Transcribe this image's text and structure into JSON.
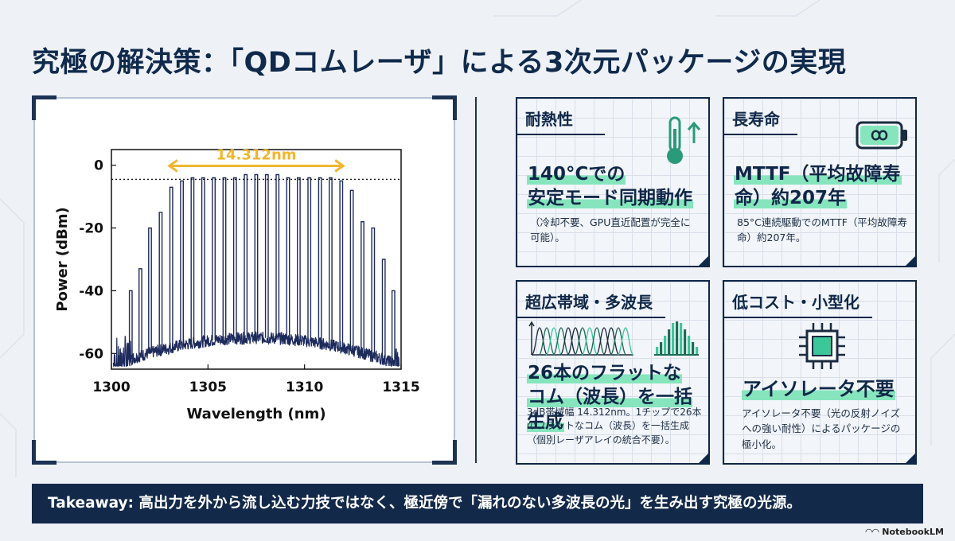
{
  "title": "究極の解決策：「QDコムレーザ」による3次元パッケージの実現",
  "chart_data": {
    "type": "line",
    "xlabel": "Wavelength (nm)",
    "ylabel": "Power (dBm)",
    "xlim": [
      1300,
      1315
    ],
    "ylim": [
      -65,
      5
    ],
    "xticks": [
      1300,
      1305,
      1310,
      1315
    ],
    "yticks": [
      0,
      -20,
      -40,
      -60
    ],
    "reference_line_dbm": -4.5,
    "annotation": "14.312nm",
    "annotation_range": [
      1303.0,
      1312.0
    ],
    "peaks": [
      {
        "x": 1301.0,
        "y": -40
      },
      {
        "x": 1301.5,
        "y": -33
      },
      {
        "x": 1302.0,
        "y": -20
      },
      {
        "x": 1302.55,
        "y": -15
      },
      {
        "x": 1303.1,
        "y": -7
      },
      {
        "x": 1303.65,
        "y": -5
      },
      {
        "x": 1304.2,
        "y": -4
      },
      {
        "x": 1304.75,
        "y": -4
      },
      {
        "x": 1305.3,
        "y": -4
      },
      {
        "x": 1305.85,
        "y": -4
      },
      {
        "x": 1306.4,
        "y": -4
      },
      {
        "x": 1306.95,
        "y": -3
      },
      {
        "x": 1307.5,
        "y": -3
      },
      {
        "x": 1308.05,
        "y": -3
      },
      {
        "x": 1308.6,
        "y": -3
      },
      {
        "x": 1309.15,
        "y": -4
      },
      {
        "x": 1309.7,
        "y": -4
      },
      {
        "x": 1310.25,
        "y": -4
      },
      {
        "x": 1310.8,
        "y": -4
      },
      {
        "x": 1311.35,
        "y": -4
      },
      {
        "x": 1311.9,
        "y": -5
      },
      {
        "x": 1312.45,
        "y": -8
      },
      {
        "x": 1313.0,
        "y": -18
      },
      {
        "x": 1313.55,
        "y": -20
      },
      {
        "x": 1314.1,
        "y": -30
      },
      {
        "x": 1314.6,
        "y": -40
      }
    ]
  },
  "cards": {
    "heat": {
      "header": "耐熱性",
      "main_line1": "140°Cでの",
      "main_line2": "安定モード同期動作",
      "sub": "（冷却不要、GPU直近配置が完全に可能）。",
      "icon": "thermometer-up-icon"
    },
    "life": {
      "header": "長寿命",
      "main_line1": "MTTF（平均故障寿",
      "main_line2": "命）約207年",
      "sub": "85°C連続駆動でのMTTF（平均故障寿命）約207年。",
      "icon": "infinity-battery-icon"
    },
    "band": {
      "header": "超広帯域・多波長",
      "main_line1": "26本のフラットな",
      "main_line2": "コム（波長）を一括生成",
      "sub": "3dB帯域幅 14.312nm。1チップで26本のフラットなコム（波長）を一括生成（個別レーザアレイの統合不要）。",
      "icon": "multi-wavelength-icon"
    },
    "cost": {
      "header": "低コスト・小型化",
      "main_line1": "アイソレータ不要",
      "sub": "アイソレータ不要（光の反射ノイズへの強い耐性）によるパッケージの極小化。",
      "icon": "chip-icon"
    }
  },
  "takeaway": "Takeaway: 高出力を外から流し込む力技ではなく、極近傍で「漏れのない多波長の光」を生み出す究極の光源。",
  "brand": "NotebookLM",
  "colors": {
    "navy": "#13294a",
    "accent_gold": "#f0b62d",
    "highlight_green": "#86e5bd",
    "icon_teal": "#2a9a7b"
  }
}
